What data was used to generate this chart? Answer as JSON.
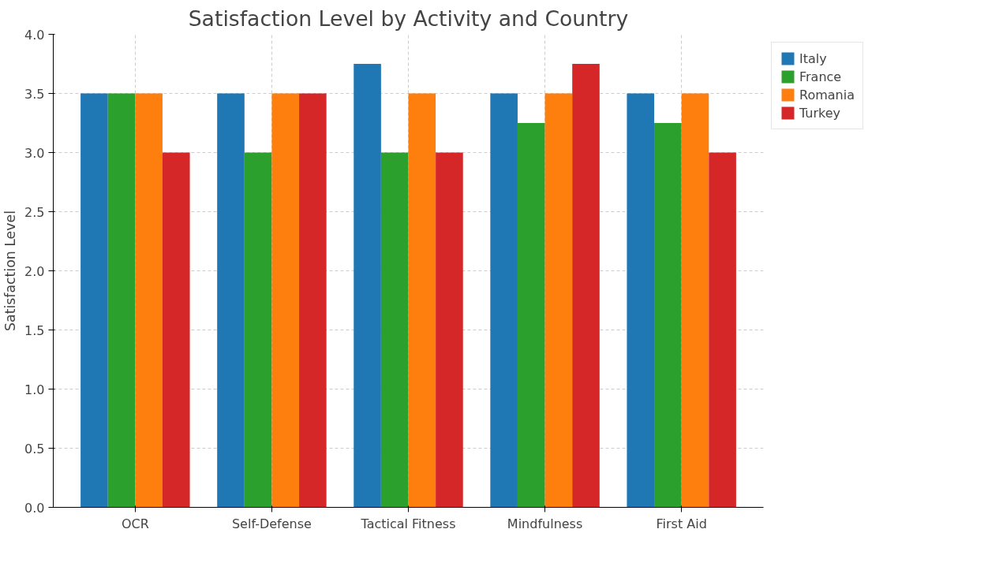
{
  "chart_data": {
    "type": "bar",
    "title": "Satisfaction Level by Activity and Country",
    "ylabel": "Satisfaction Level",
    "categories": [
      "OCR",
      "Self-Defense",
      "Tactical Fitness",
      "Mindfulness",
      "First Aid"
    ],
    "series": [
      {
        "name": "Italy",
        "color": "#1f77b4",
        "values": [
          3.5,
          3.5,
          3.75,
          3.5,
          3.5
        ]
      },
      {
        "name": "France",
        "color": "#2ca02c",
        "values": [
          3.5,
          3.0,
          3.0,
          3.25,
          3.25
        ]
      },
      {
        "name": "Romania",
        "color": "#ff7f0e",
        "values": [
          3.5,
          3.5,
          3.5,
          3.5,
          3.5
        ]
      },
      {
        "name": "Turkey",
        "color": "#d62728",
        "values": [
          3.0,
          3.5,
          3.0,
          3.75,
          3.0
        ]
      }
    ],
    "ylim": [
      0,
      4
    ],
    "yticks": [
      {
        "value": 0,
        "label": "0.0"
      },
      0.5,
      {
        "value": 1,
        "label": "1.0"
      },
      1.5,
      {
        "value": 2,
        "label": "2.0"
      },
      2.5,
      {
        "value": 3,
        "label": "3.0"
      },
      3.5,
      {
        "value": 4,
        "label": "4.0"
      }
    ],
    "grid": true,
    "legend": "top right"
  }
}
